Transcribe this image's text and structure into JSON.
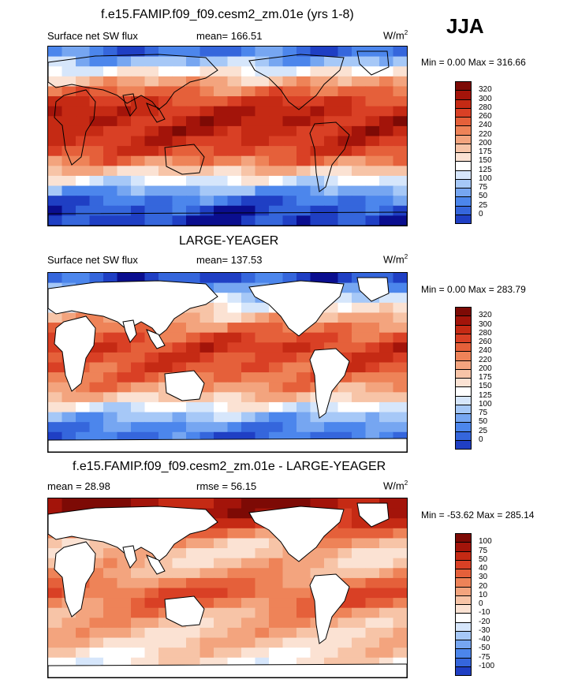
{
  "season": "JJA",
  "colors": {
    "full_scale": [
      "#0a0e8f",
      "#1f3fc4",
      "#3566dc",
      "#4c86ec",
      "#76a6f1",
      "#a6c8f7",
      "#d6e6fb",
      "#ffffff",
      "#fbe2d3",
      "#f7c4a7",
      "#f3a47e",
      "#ee8358",
      "#e5603a",
      "#d94025",
      "#c52a14",
      "#a3140a",
      "#7d0a05"
    ],
    "diff_scale": [
      "#0a0e8f",
      "#1f3fc4",
      "#3566dc",
      "#4c86ec",
      "#76a6f1",
      "#a6c8f7",
      "#d6e6fb",
      "#ffffff",
      "#fbe2d3",
      "#f7c4a7",
      "#f3a47e",
      "#ee8358",
      "#e5603a",
      "#d94025",
      "#c52a14",
      "#a3140a",
      "#7d0a05"
    ],
    "land": "#ffffff",
    "coast": "#000000"
  },
  "chart_data": [
    {
      "type": "heatmap",
      "title": "f.e15.FAMIP.f09_f09.cesm2_zm.01e (yrs 1-8)",
      "variable": "Surface net SW flux",
      "stat_text": "mean= 166.51",
      "units": "W/m",
      "units_exp": "2",
      "min_max_text": "Min =   0.00 Max = 316.66",
      "colorbar_levels": [
        "320",
        "300",
        "280",
        "260",
        "240",
        "220",
        "200",
        "175",
        "150",
        "125",
        "100",
        "75",
        "50",
        "25",
        "0"
      ],
      "land_masked": false,
      "zonal_profile": [
        0.05,
        0.1,
        0.15,
        0.25,
        0.4,
        0.55,
        0.7,
        0.8,
        0.85,
        0.88,
        0.9,
        0.88,
        0.82,
        0.72,
        0.6,
        0.45,
        0.3,
        0.15
      ]
    },
    {
      "type": "heatmap",
      "title": "LARGE-YEAGER",
      "variable": "Surface net SW flux",
      "stat_text": "mean= 137.53",
      "units": "W/m",
      "units_exp": "2",
      "min_max_text": "Min =   0.00 Max = 283.79",
      "colorbar_levels": [
        "320",
        "300",
        "280",
        "260",
        "240",
        "220",
        "200",
        "175",
        "150",
        "125",
        "100",
        "75",
        "50",
        "25",
        "0"
      ],
      "land_masked": true,
      "zonal_profile": [
        0.1,
        0.15,
        0.2,
        0.3,
        0.42,
        0.55,
        0.65,
        0.72,
        0.78,
        0.8,
        0.82,
        0.78,
        0.7,
        0.6,
        0.48,
        0.35,
        0.2,
        0.1
      ]
    },
    {
      "type": "heatmap",
      "title": "f.e15.FAMIP.f09_f09.cesm2_zm.01e - LARGE-YEAGER",
      "variable": "mean =  28.98",
      "stat_text": "rmse =  56.15",
      "units": "W/m",
      "units_exp": "2",
      "min_max_text": "Min = -53.62 Max = 285.14",
      "colorbar_levels": [
        "100",
        "75",
        "50",
        "40",
        "30",
        "20",
        "10",
        "0",
        "-10",
        "-20",
        "-30",
        "-40",
        "-50",
        "-75",
        "-100"
      ],
      "land_masked": true,
      "zonal_profile": [
        0.45,
        0.48,
        0.52,
        0.55,
        0.58,
        0.6,
        0.65,
        0.72,
        0.75,
        0.7,
        0.62,
        0.58,
        0.55,
        0.6,
        0.7,
        0.82,
        0.9,
        0.95
      ]
    }
  ]
}
